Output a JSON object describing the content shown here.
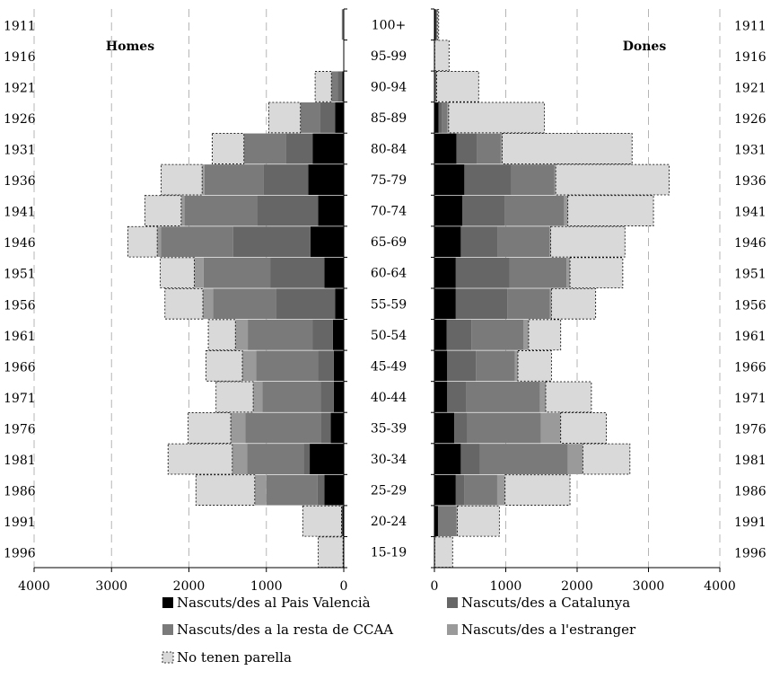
{
  "chart_data": {
    "type": "bar",
    "subtype": "population-pyramid-stacked",
    "panels": {
      "men": {
        "title": "Homes",
        "xlim": [
          4000,
          0
        ],
        "ticks": [
          4000,
          3000,
          2000,
          1000,
          0
        ]
      },
      "women": {
        "title": "Dones",
        "xlim": [
          0,
          4000
        ],
        "ticks": [
          0,
          1000,
          2000,
          3000,
          4000
        ]
      }
    },
    "age_groups": [
      "15-19",
      "20-24",
      "25-29",
      "30-34",
      "35-39",
      "40-44",
      "45-49",
      "50-54",
      "55-59",
      "60-64",
      "65-69",
      "70-74",
      "75-79",
      "80-84",
      "85-89",
      "90-94",
      "95-99",
      "100+"
    ],
    "birth_years": [
      "1996",
      "1991",
      "1986",
      "1981",
      "1976",
      "1971",
      "1966",
      "1961",
      "1956",
      "1951",
      "1946",
      "1941",
      "1936",
      "1931",
      "1926",
      "1921",
      "1916",
      "1911"
    ],
    "series": [
      {
        "name": "Nascuts/des al Pais Valencià",
        "color": "#000000",
        "dashed": false,
        "men": [
          0,
          20,
          250,
          440,
          170,
          130,
          130,
          140,
          110,
          250,
          430,
          330,
          460,
          400,
          110,
          20,
          5,
          5
        ],
        "women": [
          5,
          50,
          300,
          370,
          280,
          180,
          180,
          170,
          300,
          300,
          370,
          390,
          420,
          310,
          60,
          10,
          5,
          20
        ]
      },
      {
        "name": "Nascuts/des a Catalunya",
        "color": "#666666",
        "dashed": false,
        "men": [
          0,
          0,
          90,
          80,
          120,
          170,
          200,
          260,
          760,
          700,
          1000,
          790,
          580,
          350,
          200,
          60,
          0,
          0
        ],
        "women": [
          0,
          0,
          120,
          270,
          180,
          270,
          400,
          350,
          720,
          750,
          520,
          600,
          660,
          290,
          50,
          20,
          0,
          0
        ]
      },
      {
        "name": "Nascuts/des a la resta de CCAA",
        "color": "#7a7a7a",
        "dashed": false,
        "men": [
          10,
          10,
          660,
          730,
          980,
          750,
          800,
          840,
          820,
          860,
          930,
          940,
          760,
          540,
          250,
          80,
          0,
          20
        ],
        "women": [
          0,
          260,
          460,
          1230,
          1030,
          1030,
          550,
          730,
          600,
          800,
          720,
          830,
          600,
          330,
          70,
          0,
          0,
          20
        ]
      },
      {
        "name": "Nascuts/des a l'estranger",
        "color": "#9a9a9a",
        "dashed": false,
        "men": [
          0,
          0,
          150,
          190,
          190,
          120,
          180,
          160,
          130,
          120,
          50,
          40,
          30,
          0,
          0,
          0,
          0,
          0
        ],
        "women": [
          0,
          10,
          110,
          210,
          280,
          80,
          40,
          70,
          20,
          50,
          20,
          50,
          20,
          20,
          20,
          0,
          0,
          0
        ]
      },
      {
        "name": "No tenen parella",
        "color": "#d9d9d9",
        "dashed": true,
        "men": [
          320,
          500,
          760,
          830,
          550,
          480,
          470,
          350,
          490,
          440,
          380,
          470,
          530,
          410,
          410,
          210,
          0,
          0
        ],
        "women": [
          250,
          590,
          910,
          660,
          640,
          640,
          470,
          450,
          620,
          740,
          1040,
          1200,
          1590,
          1820,
          1340,
          590,
          200,
          20
        ]
      }
    ]
  }
}
